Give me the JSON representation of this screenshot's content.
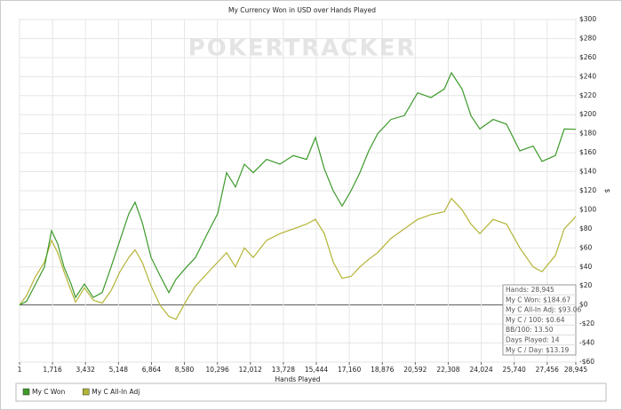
{
  "chart_data": {
    "type": "line",
    "title": "My Currency Won in USD over Hands Played",
    "watermark": "POKERTRACKER",
    "x_label": "Hands Played",
    "y_label": "$",
    "x": [
      1,
      371,
      833,
      1295,
      1666,
      1989,
      2313,
      2683,
      2914,
      3376,
      3839,
      4301,
      4764,
      5226,
      5688,
      6012,
      6382,
      6844,
      7307,
      7769,
      8139,
      8694,
      9156,
      9850,
      10312,
      10775,
      11237,
      11699,
      12162,
      12855,
      13549,
      14243,
      14937,
      15399,
      15861,
      16324,
      16786,
      17248,
      17710,
      18173,
      18635,
      19328,
      20022,
      20716,
      21410,
      22103,
      22473,
      23028,
      23491,
      23953,
      24646,
      25340,
      26034,
      26727,
      27190,
      27883,
      28345,
      28945
    ],
    "series": [
      {
        "name": "My C Won",
        "color": "#3c9a2a",
        "values": [
          0,
          4,
          22,
          40,
          78,
          64,
          40,
          22,
          8,
          22,
          8,
          13,
          40,
          68,
          96,
          108,
          87,
          50,
          31,
          13,
          27,
          40,
          50,
          78,
          96,
          139,
          124,
          148,
          139,
          153,
          148,
          157,
          153,
          176,
          143,
          120,
          104,
          120,
          139,
          162,
          180,
          195,
          199,
          223,
          218,
          227,
          244,
          227,
          199,
          185,
          195,
          190,
          162,
          167,
          151,
          157,
          185,
          184.67
        ]
      },
      {
        "name": "My C All-In Adj",
        "color": "#b3b335",
        "values": [
          0,
          10,
          30,
          45,
          68,
          55,
          35,
          15,
          3,
          18,
          5,
          2,
          15,
          35,
          50,
          58,
          45,
          20,
          0,
          -12,
          -15,
          5,
          20,
          35,
          45,
          55,
          40,
          60,
          50,
          68,
          75,
          80,
          85,
          90,
          75,
          45,
          28,
          30,
          40,
          48,
          55,
          70,
          80,
          90,
          95,
          98,
          112,
          100,
          85,
          75,
          90,
          85,
          60,
          40,
          35,
          52,
          80,
          93.06
        ]
      }
    ],
    "xlim": [
      1,
      28945
    ],
    "xticks": [
      1,
      {
        "value": 1716,
        "label": "1,716"
      },
      {
        "value": 3432,
        "label": "3,432"
      },
      {
        "value": 5148,
        "label": "5,148"
      },
      {
        "value": 6864,
        "label": "6,864"
      },
      {
        "value": 8580,
        "label": "8,580"
      },
      {
        "value": 10296,
        "label": "10,296"
      },
      {
        "value": 12012,
        "label": "12,012"
      },
      {
        "value": 13728,
        "label": "13,728"
      },
      {
        "value": 15444,
        "label": "15,444"
      },
      {
        "value": 17160,
        "label": "17,160"
      },
      {
        "value": 18876,
        "label": "18,876"
      },
      {
        "value": 20592,
        "label": "20,592"
      },
      {
        "value": 22308,
        "label": "22,308"
      },
      {
        "value": 24024,
        "label": "24,024"
      },
      {
        "value": 25740,
        "label": "25,740"
      },
      {
        "value": 27456,
        "label": "27,456"
      },
      {
        "value": 28945,
        "label": "28,945"
      }
    ],
    "ylim": [
      -60,
      300
    ],
    "yticks": [
      {
        "value": -60,
        "label": "-$60"
      },
      {
        "value": -40,
        "label": "-$40"
      },
      {
        "value": -20,
        "label": "-$20"
      },
      {
        "value": 0,
        "label": "$0"
      },
      {
        "value": 20,
        "label": "$20"
      },
      {
        "value": 40,
        "label": "$40"
      },
      {
        "value": 60,
        "label": "$60"
      },
      {
        "value": 80,
        "label": "$80"
      },
      {
        "value": 100,
        "label": "$100"
      },
      {
        "value": 120,
        "label": "$120"
      },
      {
        "value": 140,
        "label": "$140"
      },
      {
        "value": 160,
        "label": "$160"
      },
      {
        "value": 180,
        "label": "$180"
      },
      {
        "value": 200,
        "label": "$200"
      },
      {
        "value": 220,
        "label": "$220"
      },
      {
        "value": 240,
        "label": "$240"
      },
      {
        "value": 260,
        "label": "$260"
      },
      {
        "value": 280,
        "label": "$280"
      },
      {
        "value": 300,
        "label": "$300"
      }
    ],
    "grid": true,
    "stats": [
      "Hands: 28,945",
      "My C Won: $184.67",
      "My C All-In Adj: $93.06",
      "My C / 100: $0.64",
      "BB/100: 13.50",
      "Days Played: 14",
      "My C / Day: $13.19"
    ]
  }
}
